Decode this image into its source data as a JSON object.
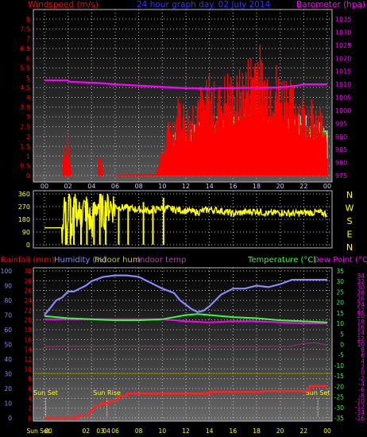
{
  "colors": {
    "red": "#ff0000",
    "blue": "#3333ff",
    "magenta": "#ff00ff",
    "yellow": "#ffff00",
    "green": "#33ff33",
    "white": "#ffffff",
    "humidity": "#8888ff",
    "rain": "#ff2222",
    "light_green": "#ccffcc"
  },
  "chart_data": [
    {
      "type": "line",
      "title": "24 hour graph day. 02 July 2014",
      "ylabel_left": "Windspeed (m/s)",
      "ylabel_right": "Barometer (hpa)",
      "left_ticks": [
        "8",
        "7.5",
        "7",
        "6.5",
        "6",
        "5.5",
        "5",
        "4.5",
        "4",
        "3.5",
        "3",
        "2.5",
        "2",
        "1.5",
        "1",
        "0.5",
        "0"
      ],
      "right_ticks": [
        "1035",
        "1030",
        "1025",
        "1020",
        "1015",
        "1010",
        "1005",
        "1000",
        "995",
        "990",
        "985",
        "980",
        "975"
      ],
      "x_ticks": [
        "00",
        "02",
        "04",
        "06",
        "08",
        "10",
        "12",
        "14",
        "16",
        "18",
        "20",
        "22",
        "00"
      ],
      "grid": true,
      "series": [
        {
          "name": "Windspeed (m/s)",
          "x": [
            0,
            1.5,
            1.6,
            1.8,
            2.0,
            2.3,
            4.5,
            4.6,
            4.8,
            5.0,
            9.5,
            10,
            10.5,
            11,
            11.5,
            12,
            12.5,
            13,
            13.5,
            14,
            14.5,
            15,
            15.5,
            16,
            16.5,
            17,
            17.5,
            18,
            18.5,
            19,
            19.5,
            20,
            20.5,
            21,
            21.5,
            22,
            22.5,
            23,
            23.5,
            24
          ],
          "y": [
            0,
            0,
            1.6,
            1.2,
            1.8,
            0,
            0,
            1.0,
            0.8,
            0,
            0.1,
            1.3,
            2.2,
            2.8,
            3.6,
            3.0,
            3.2,
            4.2,
            3.5,
            4.5,
            3.8,
            3.9,
            4.6,
            4.1,
            4.4,
            4.8,
            5.3,
            6.2,
            5.0,
            4.8,
            5.1,
            4.3,
            4.6,
            3.8,
            3.9,
            3.3,
            3.5,
            2.7,
            2.9,
            1.5
          ]
        },
        {
          "name": "Wind average (m/s)",
          "x": [
            10.5,
            12,
            13,
            14,
            15,
            16,
            17,
            18,
            19,
            20,
            21,
            22,
            23,
            24
          ],
          "y": [
            1.5,
            2.0,
            2.2,
            2.4,
            2.5,
            2.7,
            2.8,
            2.9,
            2.7,
            2.6,
            2.5,
            2.4,
            2.3,
            2.0
          ]
        },
        {
          "name": "Barometer (hpa)",
          "x": [
            0,
            2.0,
            2.1,
            4.5,
            6.0,
            8.0,
            10.0,
            12.0,
            14.0,
            15.0,
            18.0,
            20.0,
            21.5,
            22.0,
            24.0
          ],
          "y": [
            1011.5,
            1011.5,
            1011.0,
            1010.5,
            1010.0,
            1009.5,
            1009.0,
            1008.5,
            1008.3,
            1008.5,
            1008.7,
            1008.8,
            1009.5,
            1010.0,
            1010.0
          ]
        }
      ]
    },
    {
      "type": "scatter",
      "ylabel_right": "N W S E N",
      "left_ticks": [
        "360",
        "270",
        "180",
        "90",
        "0"
      ],
      "series": [
        {
          "name": "Wind direction",
          "x": [
            0,
            1.5,
            1.7,
            1.9,
            2.1,
            2.3,
            2.6,
            3.0,
            3.5,
            4.0,
            4.5,
            5.0,
            5.5,
            6,
            7,
            8,
            9,
            10,
            11,
            12,
            13,
            14,
            15,
            16,
            17,
            18,
            19,
            20,
            21,
            22,
            23,
            24
          ],
          "y": [
            120,
            120,
            300,
            60,
            320,
            90,
            280,
            200,
            260,
            140,
            300,
            220,
            280,
            270,
            260,
            250,
            240,
            260,
            250,
            240,
            230,
            250,
            240,
            220,
            230,
            240,
            220,
            230,
            220,
            225,
            230,
            220
          ]
        }
      ]
    },
    {
      "type": "line",
      "ylabel_left_1": "Rainfall (mm)",
      "ylabel_left_2": "Humidity (%)",
      "ylabel_mid_1": "Indoor hum",
      "ylabel_mid_2": "Indoor temp",
      "ylabel_right_1": "Temperature (°C)",
      "ylabel_right_2": "Dew Point (°C)",
      "rain_ticks": [
        "30",
        "28",
        "26",
        "24",
        "22",
        "20",
        "18",
        "16",
        "14",
        "12",
        "10",
        "8",
        "6",
        "4",
        "2",
        "0"
      ],
      "humidity_ticks": [
        "100",
        "90",
        "80",
        "70",
        "60",
        "50",
        "40",
        "30",
        "20",
        "10",
        "0"
      ],
      "temp_ticks": [
        "35",
        "30",
        "25",
        "20",
        "15",
        "10",
        "5",
        "0",
        "-5",
        "-10",
        "-15",
        "-20",
        "-25",
        "-30",
        "-35"
      ],
      "dew_ticks": [
        "34",
        "32",
        "30",
        "28",
        "26",
        "24",
        "22",
        "20",
        "18",
        "16",
        "14",
        "12",
        "10",
        "8",
        "6",
        "4",
        "2",
        "0",
        "-2",
        "-4",
        "-6",
        "-8",
        "-10",
        "-12",
        "-14",
        "-16"
      ],
      "x_ticks": [
        "Sun Set",
        "00",
        "02",
        "03",
        "04",
        "Sun Rise",
        "06",
        "08",
        "10",
        "12",
        "14",
        "16",
        "18",
        "20",
        "22",
        "00"
      ],
      "annotations": [
        "Sun Set",
        "Sun Rise",
        "Sun Set"
      ],
      "series": [
        {
          "name": "Humidity (%)",
          "x": [
            0,
            0.5,
            1,
            1.5,
            2,
            2.5,
            3,
            3.5,
            4,
            5,
            6,
            7,
            8,
            9,
            10,
            11,
            11.5,
            12,
            12.5,
            13,
            13.5,
            14,
            15,
            16,
            17,
            18,
            19,
            20,
            21,
            22,
            23,
            24
          ],
          "y": [
            70,
            75,
            80,
            82,
            86,
            86,
            88,
            90,
            93,
            96,
            97,
            97,
            96,
            92,
            88,
            85,
            80,
            77,
            74,
            72,
            73,
            76,
            84,
            88,
            88,
            90,
            89,
            91,
            94,
            94,
            94,
            94
          ]
        },
        {
          "name": "Temperature (°C)",
          "x": [
            0,
            2,
            4,
            6,
            8,
            10,
            12,
            13,
            14,
            16,
            18,
            20,
            22,
            24
          ],
          "y": [
            13.5,
            12.5,
            12.0,
            11.5,
            11.5,
            12.0,
            14.0,
            14.5,
            14.0,
            13.0,
            12.5,
            11.5,
            11.0,
            10.5
          ]
        },
        {
          "name": "Dew Point (°C)",
          "x": [
            0,
            2,
            4,
            6,
            8,
            10,
            12,
            14,
            16,
            18,
            20,
            22,
            24
          ],
          "y": [
            12,
            12,
            12,
            12,
            12,
            12,
            11,
            10.5,
            11,
            11,
            10.5,
            10,
            10
          ]
        },
        {
          "name": "Indoor temp",
          "x": [
            0,
            4,
            8,
            12,
            16,
            20,
            21,
            22,
            23,
            24
          ],
          "y": [
            -1.0,
            -0.8,
            -0.8,
            -0.9,
            -0.9,
            -0.9,
            -0.8,
            0.5,
            0.8,
            -0.3
          ]
        },
        {
          "name": "Rainfall (mm)",
          "x": [
            0,
            2.8,
            2.8,
            3.8,
            3.8,
            4.2,
            4.2,
            4.8,
            4.8,
            5.5,
            5.5,
            6.2,
            6.2,
            7.0,
            7.0,
            14.0,
            14.0,
            18.5,
            18.5,
            20.0,
            20.0,
            22.5,
            22.5,
            24
          ],
          "y": [
            0.0,
            0.0,
            0.5,
            0.5,
            1.5,
            1.5,
            2.5,
            2.5,
            3.0,
            3.0,
            3.5,
            3.5,
            4.5,
            4.5,
            5.0,
            5.0,
            5.3,
            5.3,
            5.5,
            5.5,
            5.5,
            5.5,
            6.5,
            6.5
          ]
        }
      ]
    }
  ]
}
